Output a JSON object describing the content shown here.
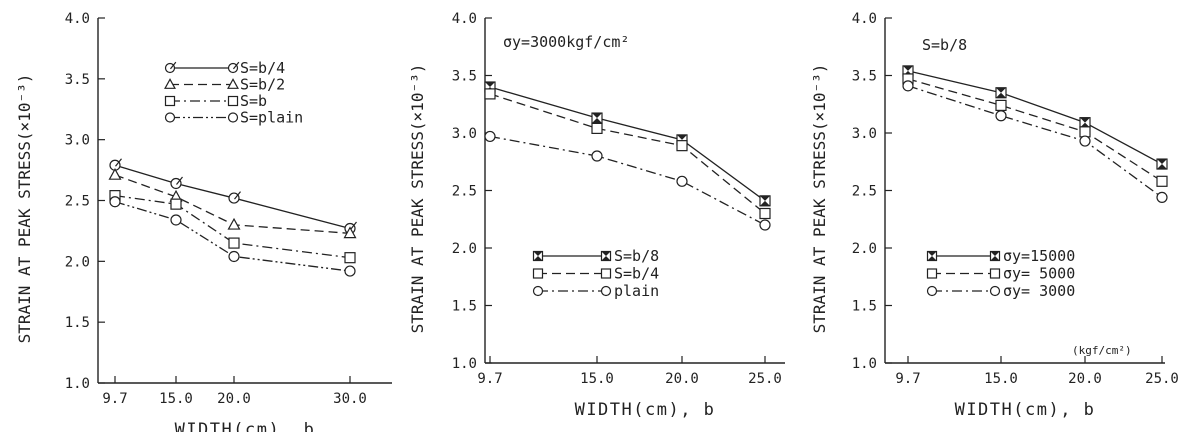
{
  "chart_data": [
    {
      "type": "line",
      "ylabel": "STRAIN AT PEAK STRESS(×10⁻³)",
      "xlabel": "WIDTH(cm), b",
      "ylim": [
        1.0,
        4.0
      ],
      "yticks": [
        "1.0",
        "1.5",
        "2.0",
        "2.5",
        "3.0",
        "3.5",
        "4.0"
      ],
      "x": [
        9.7,
        15.0,
        20.0,
        30.0
      ],
      "xticks": [
        "9.7",
        "15.0",
        "20.0",
        "30.0"
      ],
      "annotation": "",
      "unit_note": "",
      "legend_position": "top-right",
      "series": [
        {
          "name": "S=b/4",
          "marker": "circle-slash",
          "dash": "solid",
          "values": [
            2.79,
            2.64,
            2.52,
            2.27
          ]
        },
        {
          "name": "S=b/2",
          "marker": "triangle",
          "dash": "dashed",
          "values": [
            2.71,
            2.53,
            2.3,
            2.23
          ]
        },
        {
          "name": "S=b",
          "marker": "square",
          "dash": "dashdot",
          "values": [
            2.54,
            2.47,
            2.15,
            2.03
          ]
        },
        {
          "name": "S=plain",
          "marker": "circle",
          "dash": "dashdotdot",
          "values": [
            2.49,
            2.34,
            2.04,
            1.92
          ]
        }
      ]
    },
    {
      "type": "line",
      "ylabel": "STRAIN AT PEAK STRESS(×10⁻³)",
      "xlabel": "WIDTH(cm), b",
      "ylim": [
        1.0,
        4.0
      ],
      "yticks": [
        "1.0",
        "1.5",
        "2.0",
        "2.5",
        "3.0",
        "3.5",
        "4.0"
      ],
      "x": [
        9.7,
        15.0,
        20.0,
        25.0
      ],
      "xticks": [
        "9.7",
        "15.0",
        "20.0",
        "25.0"
      ],
      "annotation": "σy=3000kgf/cm²",
      "unit_note": "",
      "legend_position": "bottom-left",
      "series": [
        {
          "name": "S=b/8",
          "marker": "hourglass-square",
          "dash": "solid",
          "values": [
            3.4,
            3.13,
            2.94,
            2.41
          ]
        },
        {
          "name": "S=b/4",
          "marker": "square",
          "dash": "dashed",
          "values": [
            3.34,
            3.04,
            2.89,
            2.3
          ]
        },
        {
          "name": "plain",
          "marker": "circle",
          "dash": "dashdot",
          "values": [
            2.97,
            2.8,
            2.58,
            2.2
          ]
        }
      ]
    },
    {
      "type": "line",
      "ylabel": "STRAIN AT PEAK STRESS(×10⁻³)",
      "xlabel": "WIDTH(cm), b",
      "ylim": [
        1.0,
        4.0
      ],
      "yticks": [
        "1.0",
        "1.5",
        "2.0",
        "2.5",
        "3.0",
        "3.5",
        "4.0"
      ],
      "x": [
        9.7,
        15.0,
        20.0,
        25.0
      ],
      "xticks": [
        "9.7",
        "15.0",
        "20.0",
        "25.0"
      ],
      "annotation": "S=b/8",
      "unit_note": "(kgf/cm²)",
      "legend_position": "bottom-left",
      "series": [
        {
          "name": "σy=15000",
          "marker": "hourglass-square",
          "dash": "solid",
          "values": [
            3.54,
            3.35,
            3.09,
            2.73
          ]
        },
        {
          "name": "σy= 5000",
          "marker": "square",
          "dash": "dashed",
          "values": [
            3.47,
            3.24,
            3.01,
            2.58
          ]
        },
        {
          "name": "σy= 3000",
          "marker": "circle",
          "dash": "dashdot",
          "values": [
            3.41,
            3.15,
            2.93,
            2.44
          ]
        }
      ]
    }
  ]
}
